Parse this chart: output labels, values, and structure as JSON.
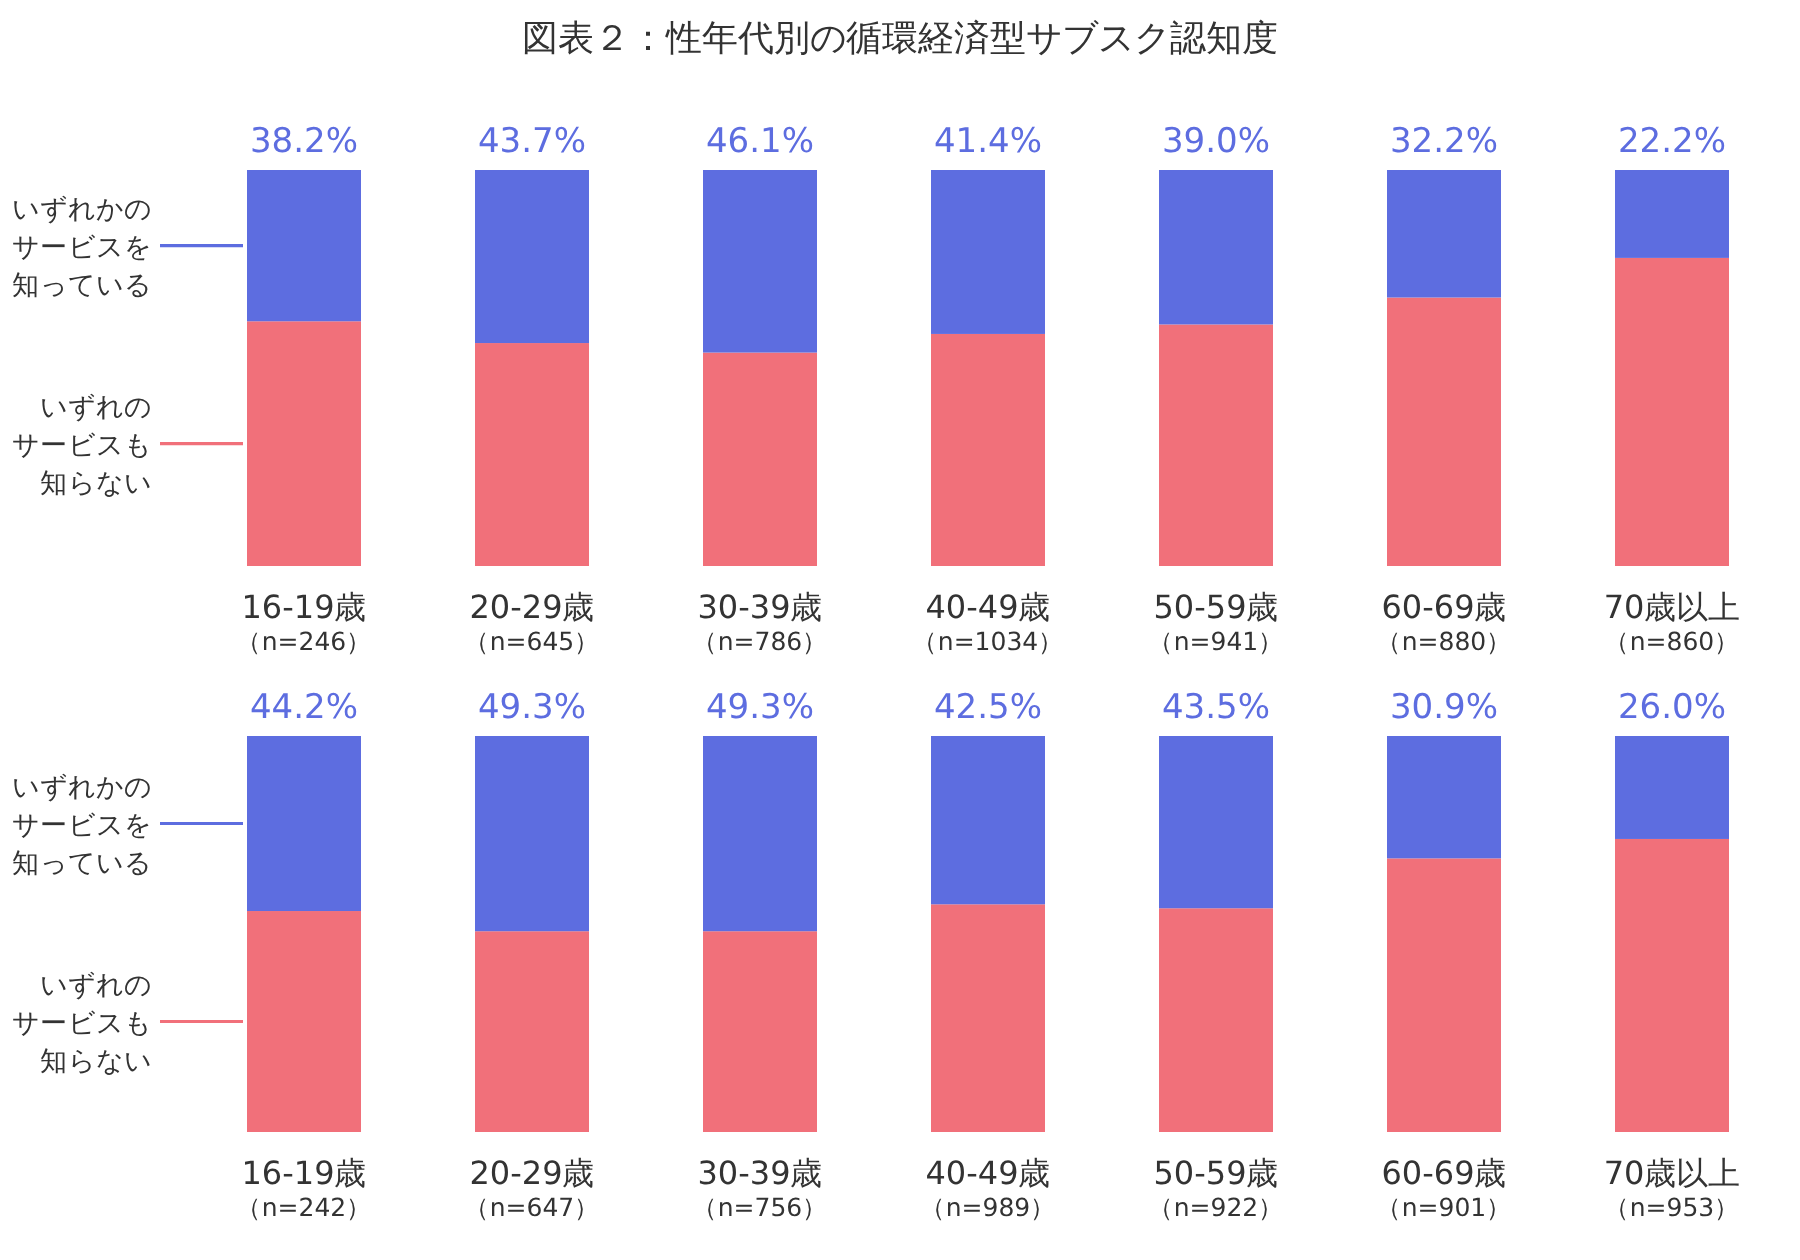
{
  "chart_data": [
    {
      "type": "bar",
      "title": "図表２：性年代別の循環経済型サブスク認知度",
      "stacked": true,
      "legend": "left",
      "categories": [
        "16-19歳（n=246）",
        "20-29歳（n=645）",
        "30-39歳（n=786）",
        "40-49歳（n=1034）",
        "50-59歳（n=941）",
        "60-69歳（n=880）",
        "70歳以上（n=860）"
      ],
      "series": [
        {
          "name": "いずれのサービスも知らない",
          "color": "#f1707a",
          "values": [
            61.8,
            56.3,
            53.9,
            58.6,
            61.0,
            67.8,
            77.8
          ]
        },
        {
          "name": "いずれかのサービスを知っている",
          "color": "#5d6de0",
          "values": [
            38.2,
            43.7,
            46.1,
            41.4,
            39.0,
            32.2,
            22.2
          ],
          "value_labels": [
            "38.2%",
            "43.7%",
            "46.1%",
            "41.4%",
            "39.0%",
            "32.2%",
            "22.2%"
          ]
        }
      ]
    },
    {
      "type": "bar",
      "stacked": true,
      "legend": "left",
      "categories": [
        "16-19歳（n=242）",
        "20-29歳（n=647）",
        "30-39歳（n=756）",
        "40-49歳（n=989）",
        "50-59歳（n=922）",
        "60-69歳（n=901）",
        "70歳以上（n=953）"
      ],
      "series": [
        {
          "name": "いずれのサービスも知らない",
          "color": "#f1707a",
          "values": [
            55.8,
            50.7,
            50.7,
            57.5,
            56.5,
            69.1,
            74.0
          ]
        },
        {
          "name": "いずれかのサービスを知っている",
          "color": "#5d6de0",
          "values": [
            44.2,
            49.3,
            49.3,
            42.5,
            43.5,
            30.9,
            26.0
          ],
          "value_labels": [
            "44.2%",
            "49.3%",
            "49.3%",
            "42.5%",
            "43.5%",
            "30.9%",
            "26.0%"
          ]
        }
      ]
    }
  ]
}
